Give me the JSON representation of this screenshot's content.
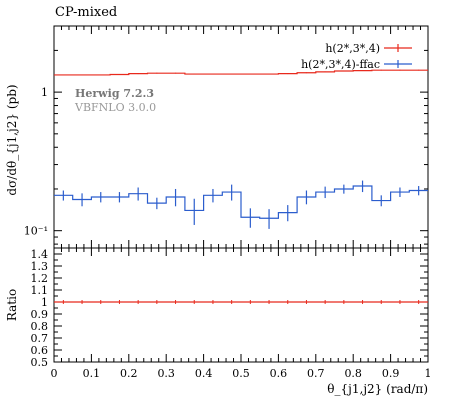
{
  "chart_data": [
    {
      "type": "line",
      "title": "CP-mixed",
      "xlabel": "θ_{j1,j2} (rad/π)",
      "ylabel": "dσ/dθ_{j1,j2} (pb)",
      "log_y": true,
      "xlim": [
        0,
        1
      ],
      "ylim": [
        0.075,
        3.0
      ],
      "y_tick_labels": [
        {
          "value": 1,
          "text": "1"
        },
        {
          "value": 0.1,
          "text": "10⁻¹"
        }
      ],
      "annotations": {
        "generator": "Herwig 7.2.3",
        "program": "VBFNLO 3.0.0"
      },
      "legend_placement": "top-right",
      "x_bin_edges": [
        0,
        0.05,
        0.1,
        0.15,
        0.2,
        0.25,
        0.3,
        0.35,
        0.4,
        0.45,
        0.5,
        0.55,
        0.6,
        0.65,
        0.7,
        0.75,
        0.8,
        0.85,
        0.9,
        0.95,
        1.0
      ],
      "series": [
        {
          "name": "h(2*,3*,4)",
          "color": "#e8291c",
          "values": [
            1.33,
            1.33,
            1.33,
            1.34,
            1.36,
            1.37,
            1.37,
            1.35,
            1.35,
            1.35,
            1.35,
            1.35,
            1.36,
            1.38,
            1.4,
            1.42,
            1.43,
            1.44,
            1.44,
            1.44
          ],
          "errors": [
            0.01,
            0.01,
            0.01,
            0.01,
            0.01,
            0.01,
            0.01,
            0.01,
            0.01,
            0.01,
            0.01,
            0.01,
            0.01,
            0.01,
            0.01,
            0.01,
            0.01,
            0.01,
            0.01,
            0.01
          ]
        },
        {
          "name": "h(2*,3*,4)-ffac",
          "color": "#2b5dcd",
          "values": [
            0.18,
            0.168,
            0.175,
            0.175,
            0.185,
            0.158,
            0.175,
            0.14,
            0.18,
            0.19,
            0.125,
            0.123,
            0.135,
            0.175,
            0.19,
            0.2,
            0.21,
            0.165,
            0.19,
            0.195
          ],
          "errors": [
            0.015,
            0.018,
            0.015,
            0.015,
            0.02,
            0.015,
            0.025,
            0.03,
            0.02,
            0.025,
            0.02,
            0.02,
            0.018,
            0.02,
            0.018,
            0.015,
            0.02,
            0.015,
            0.015,
            0.015
          ]
        }
      ]
    },
    {
      "type": "line",
      "xlabel": "θ_{j1,j2} (rad/π)",
      "ylabel": "Ratio",
      "xlim": [
        0,
        1
      ],
      "ylim": [
        0.5,
        1.45
      ],
      "y_ticks": [
        0.5,
        0.6,
        0.7,
        0.8,
        0.9,
        1.0,
        1.1,
        1.2,
        1.3,
        1.4
      ],
      "y_tick_labels": [
        "0.5",
        "0.6",
        "0.7",
        "0.8",
        "0.9",
        "1",
        "1.1",
        "1.2",
        "1.3",
        "1.4"
      ],
      "x_ticks": [
        0,
        0.1,
        0.2,
        0.3,
        0.4,
        0.5,
        0.6,
        0.7,
        0.8,
        0.9,
        1.0
      ],
      "x_tick_labels": [
        "0",
        "0.1",
        "0.2",
        "0.3",
        "0.4",
        "0.5",
        "0.6",
        "0.7",
        "0.8",
        "0.9",
        "1"
      ],
      "series": [
        {
          "name": "h(2*,3*,4)",
          "color": "#e8291c",
          "values": [
            1.0,
            1.0,
            1.0,
            1.0,
            1.0,
            1.0,
            1.0,
            1.0,
            1.0,
            1.0,
            1.0,
            1.0,
            1.0,
            1.0,
            1.0,
            1.0,
            1.0,
            1.0,
            1.0,
            1.0
          ]
        }
      ]
    }
  ]
}
